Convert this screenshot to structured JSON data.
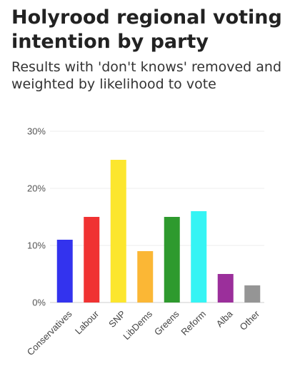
{
  "header": {
    "title": "Holyrood regional voting intention by party",
    "subtitle": "Results with 'don't knows' removed and weighted by likelihood to vote"
  },
  "chart_data": {
    "type": "bar",
    "title": "Holyrood regional voting intention by party",
    "subtitle": "Results with 'don't knows' removed and weighted by likelihood to vote",
    "xlabel": "",
    "ylabel": "",
    "categories": [
      "Conservatives",
      "Labour",
      "SNP",
      "LibDems",
      "Greens",
      "Reform",
      "Alba",
      "Other"
    ],
    "values": [
      11,
      15,
      25,
      9,
      15,
      16,
      5,
      3
    ],
    "colors": [
      "#3333ee",
      "#f03232",
      "#fce62e",
      "#fbb735",
      "#2e9a2e",
      "#35f4f4",
      "#9b2f9b",
      "#959595"
    ],
    "ylim": [
      0,
      30
    ],
    "yticks": [
      0,
      10,
      20,
      30
    ],
    "ytick_labels": [
      "0%",
      "10%",
      "20%",
      "30%"
    ],
    "unit": "%",
    "grid": true,
    "legend": "none"
  }
}
